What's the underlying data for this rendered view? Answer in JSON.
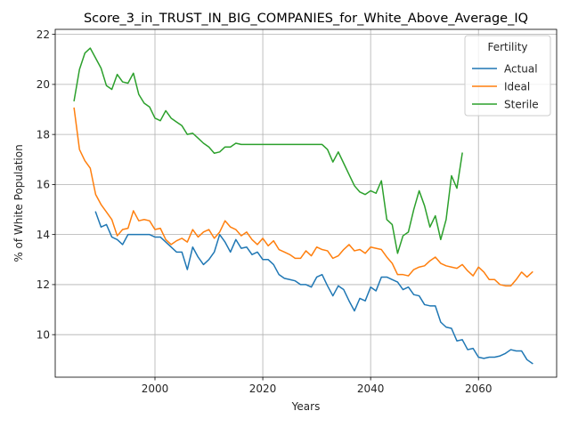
{
  "chart_data": {
    "type": "line",
    "title": "Score_3_in_TRUST_IN_BIG_COMPANIES_for_White_Above_Average_IQ",
    "xlabel": "Years",
    "ylabel": "% of White Population",
    "xlim": [
      1981.5,
      2074.5
    ],
    "ylim": [
      8.3,
      22.2
    ],
    "xticks": [
      2000,
      2020,
      2040,
      2060
    ],
    "yticks": [
      10,
      12,
      14,
      16,
      18,
      20,
      22
    ],
    "grid": true,
    "legend": {
      "title": "Fertility",
      "placement": "top-right"
    },
    "series": [
      {
        "name": "Actual",
        "color": "#1f77b4",
        "x": [
          1989,
          1990,
          1991,
          1992,
          1993,
          1994,
          1995,
          1996,
          1997,
          1998,
          1999,
          2000,
          2001,
          2002,
          2003,
          2004,
          2005,
          2006,
          2007,
          2008,
          2009,
          2010,
          2011,
          2012,
          2013,
          2014,
          2015,
          2016,
          2017,
          2018,
          2019,
          2020,
          2021,
          2022,
          2023,
          2024,
          2025,
          2026,
          2027,
          2028,
          2029,
          2030,
          2031,
          2032,
          2033,
          2034,
          2035,
          2036,
          2037,
          2038,
          2039,
          2040,
          2041,
          2042,
          2043,
          2044,
          2045,
          2046,
          2047,
          2048,
          2049,
          2050,
          2051,
          2052,
          2053,
          2054,
          2055,
          2056,
          2057,
          2058,
          2059,
          2060,
          2061,
          2062,
          2063,
          2064,
          2065,
          2066,
          2067,
          2068,
          2069,
          2070
        ],
        "y": [
          14.9,
          14.3,
          14.4,
          13.9,
          13.8,
          13.6,
          14.0,
          14.0,
          14.0,
          14.0,
          14.0,
          13.9,
          13.9,
          13.7,
          13.5,
          13.3,
          13.3,
          12.6,
          13.5,
          13.1,
          12.8,
          13.0,
          13.3,
          14.0,
          13.7,
          13.3,
          13.8,
          13.45,
          13.5,
          13.2,
          13.3,
          13.0,
          13.0,
          12.8,
          12.4,
          12.25,
          12.2,
          12.15,
          12.0,
          12.0,
          11.9,
          12.3,
          12.4,
          11.95,
          11.55,
          11.95,
          11.8,
          11.35,
          10.95,
          11.45,
          11.35,
          11.9,
          11.75,
          12.3,
          12.3,
          12.2,
          12.1,
          11.8,
          11.9,
          11.6,
          11.55,
          11.2,
          11.15,
          11.15,
          10.5,
          10.3,
          10.25,
          9.75,
          9.8,
          9.4,
          9.45,
          9.1,
          9.05,
          9.1,
          9.1,
          9.15,
          9.25,
          9.4,
          9.35,
          9.35,
          9.0,
          8.85
        ]
      },
      {
        "name": "Ideal",
        "color": "#ff7f0e",
        "x": [
          1985,
          1986,
          1987,
          1988,
          1989,
          1990,
          1991,
          1992,
          1993,
          1994,
          1995,
          1996,
          1997,
          1998,
          1999,
          2000,
          2001,
          2002,
          2003,
          2004,
          2005,
          2006,
          2007,
          2008,
          2009,
          2010,
          2011,
          2012,
          2013,
          2014,
          2015,
          2016,
          2017,
          2018,
          2019,
          2020,
          2021,
          2022,
          2023,
          2024,
          2025,
          2026,
          2027,
          2028,
          2029,
          2030,
          2031,
          2032,
          2033,
          2034,
          2035,
          2036,
          2037,
          2038,
          2039,
          2040,
          2041,
          2042,
          2043,
          2044,
          2045,
          2046,
          2047,
          2048,
          2049,
          2050,
          2051,
          2052,
          2053,
          2054,
          2055,
          2056,
          2057,
          2058,
          2059,
          2060,
          2061,
          2062,
          2063,
          2064,
          2065,
          2066,
          2067,
          2068,
          2069,
          2070
        ],
        "y": [
          19.05,
          17.4,
          16.95,
          16.65,
          15.6,
          15.2,
          14.9,
          14.6,
          13.95,
          14.2,
          14.25,
          14.95,
          14.55,
          14.6,
          14.55,
          14.2,
          14.25,
          13.8,
          13.6,
          13.75,
          13.85,
          13.7,
          14.2,
          13.9,
          14.1,
          14.2,
          13.85,
          14.1,
          14.55,
          14.3,
          14.2,
          13.95,
          14.1,
          13.8,
          13.6,
          13.85,
          13.55,
          13.75,
          13.4,
          13.3,
          13.2,
          13.05,
          13.05,
          13.35,
          13.15,
          13.5,
          13.4,
          13.35,
          13.05,
          13.15,
          13.4,
          13.6,
          13.35,
          13.4,
          13.25,
          13.5,
          13.45,
          13.4,
          13.1,
          12.85,
          12.4,
          12.4,
          12.35,
          12.6,
          12.7,
          12.75,
          12.95,
          13.1,
          12.85,
          12.75,
          12.7,
          12.65,
          12.8,
          12.55,
          12.35,
          12.7,
          12.5,
          12.2,
          12.2,
          12.0,
          11.95,
          11.95,
          12.2,
          12.5,
          12.3,
          12.5
        ]
      },
      {
        "name": "Sterile",
        "color": "#2ca02c",
        "x": [
          1985,
          1986,
          1987,
          1988,
          1989,
          1990,
          1991,
          1992,
          1993,
          1994,
          1995,
          1996,
          1997,
          1998,
          1999,
          2000,
          2001,
          2002,
          2003,
          2004,
          2005,
          2006,
          2007,
          2008,
          2009,
          2010,
          2011,
          2012,
          2013,
          2014,
          2015,
          2016,
          2017,
          2018,
          2019,
          2020,
          2021,
          2022,
          2023,
          2024,
          2025,
          2026,
          2027,
          2028,
          2029,
          2030,
          2031,
          2032,
          2033,
          2034,
          2035,
          2036,
          2037,
          2038,
          2039,
          2040,
          2041,
          2042,
          2043,
          2044,
          2045,
          2046,
          2047,
          2048,
          2049,
          2050,
          2051,
          2052,
          2053,
          2054,
          2055,
          2056,
          2057
        ],
        "y": [
          19.35,
          20.6,
          21.25,
          21.45,
          21.05,
          20.65,
          19.95,
          19.8,
          20.4,
          20.1,
          20.05,
          20.45,
          19.6,
          19.25,
          19.1,
          18.65,
          18.55,
          18.95,
          18.65,
          18.5,
          18.35,
          18.0,
          18.05,
          17.85,
          17.65,
          17.5,
          17.25,
          17.3,
          17.5,
          17.5,
          17.65,
          17.6,
          17.6,
          17.6,
          17.6,
          17.6,
          17.6,
          17.6,
          17.6,
          17.6,
          17.6,
          17.6,
          17.6,
          17.6,
          17.6,
          17.6,
          17.6,
          17.4,
          16.9,
          17.3,
          16.85,
          16.4,
          15.95,
          15.7,
          15.6,
          15.75,
          15.65,
          16.15,
          14.6,
          14.4,
          13.25,
          13.95,
          14.1,
          15.0,
          15.75,
          15.15,
          14.3,
          14.75,
          13.8,
          14.6,
          16.35,
          15.85,
          17.25
        ]
      }
    ]
  }
}
